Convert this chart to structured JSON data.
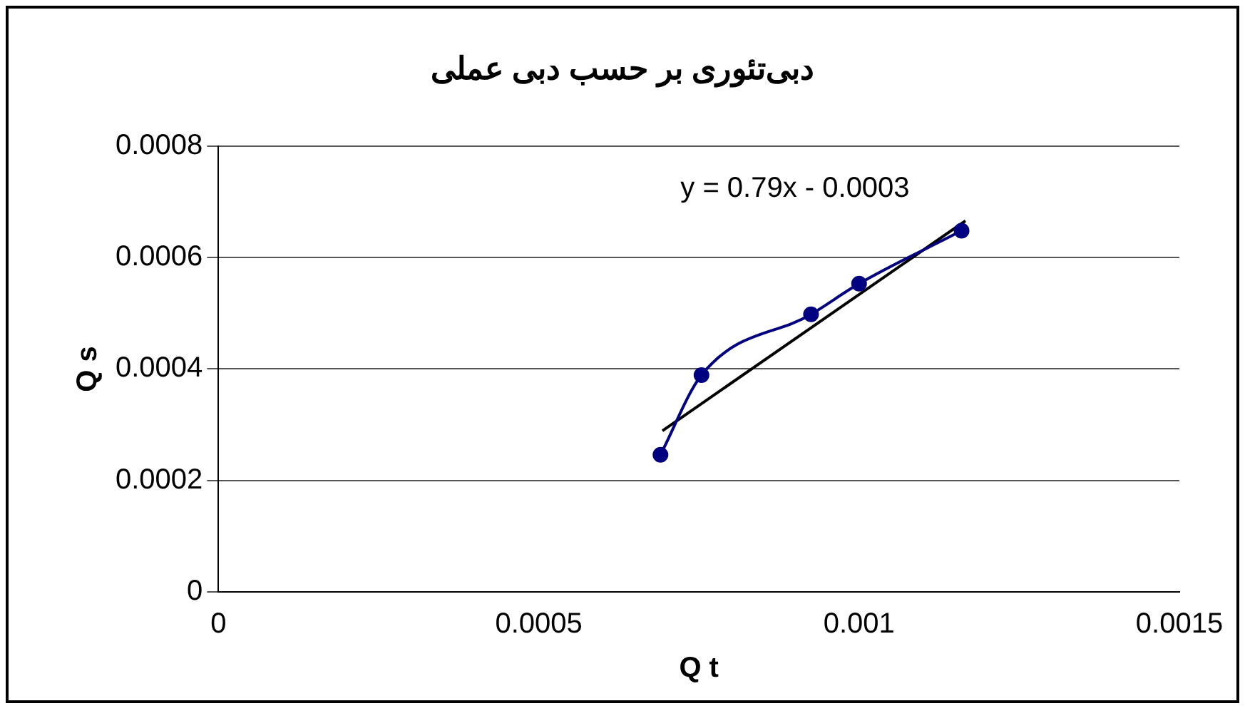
{
  "chart_data": {
    "type": "line",
    "title": "دبی‌تئوری بر حسب دبی عملی",
    "xlabel": "Q t",
    "ylabel": "Q s",
    "xlim": [
      0,
      0.0015
    ],
    "xticks": [
      0,
      0.0005,
      0.001,
      0.0015
    ],
    "ylim": [
      0,
      0.0008
    ],
    "yticks": [
      0,
      0.0002,
      0.0004,
      0.0006,
      0.0008
    ],
    "grid": "y",
    "legend": false,
    "series": [
      {
        "type": "line",
        "color": "#000080",
        "marker": "circle",
        "x": [
          0.00069,
          0.000754,
          0.000925,
          0.001,
          0.00116
        ],
        "values": [
          0.000246,
          0.000389,
          0.000498,
          0.000553,
          0.000648
        ]
      },
      {
        "type": "line",
        "color": "#000000",
        "marker": "none",
        "x": [
          0.000693,
          0.001166
        ],
        "values": [
          0.000289,
          0.000666
        ]
      }
    ],
    "annotations": [
      "y = 0.79x - 0.0003"
    ]
  }
}
